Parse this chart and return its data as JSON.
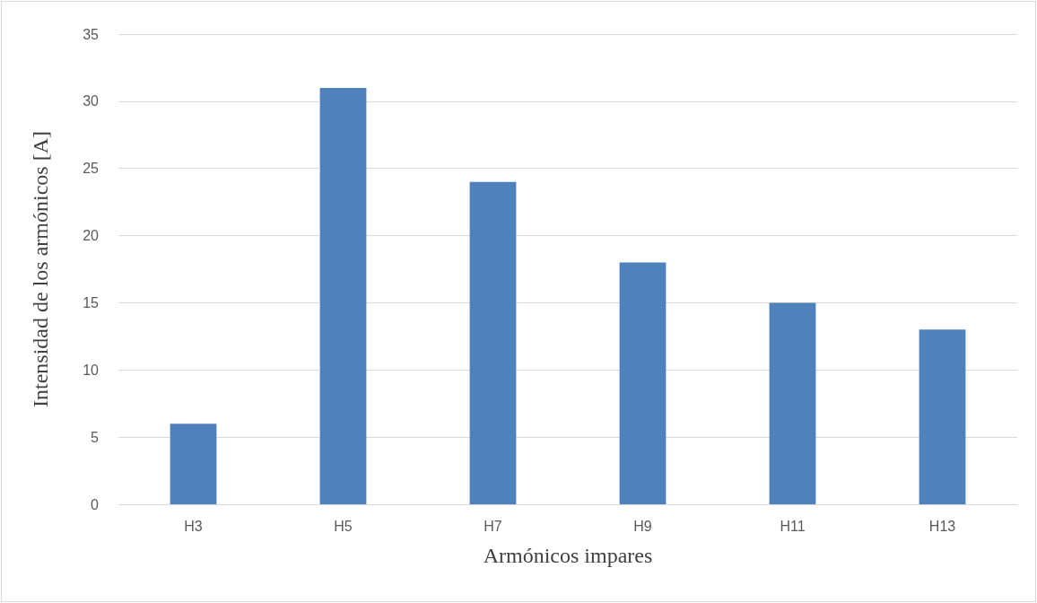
{
  "chart_data": {
    "type": "bar",
    "xlabel": "Armónicos impares",
    "ylabel": "Intensidad de los armónicos [A]",
    "categories": [
      "H3",
      "H5",
      "H7",
      "H9",
      "H11",
      "H13"
    ],
    "values": [
      6,
      31,
      24,
      18,
      15,
      13
    ],
    "color": "#4f81bd",
    "ylim": [
      0,
      35
    ],
    "yticks": [
      0,
      5,
      10,
      15,
      20,
      25,
      30,
      35
    ],
    "grid": "y"
  }
}
